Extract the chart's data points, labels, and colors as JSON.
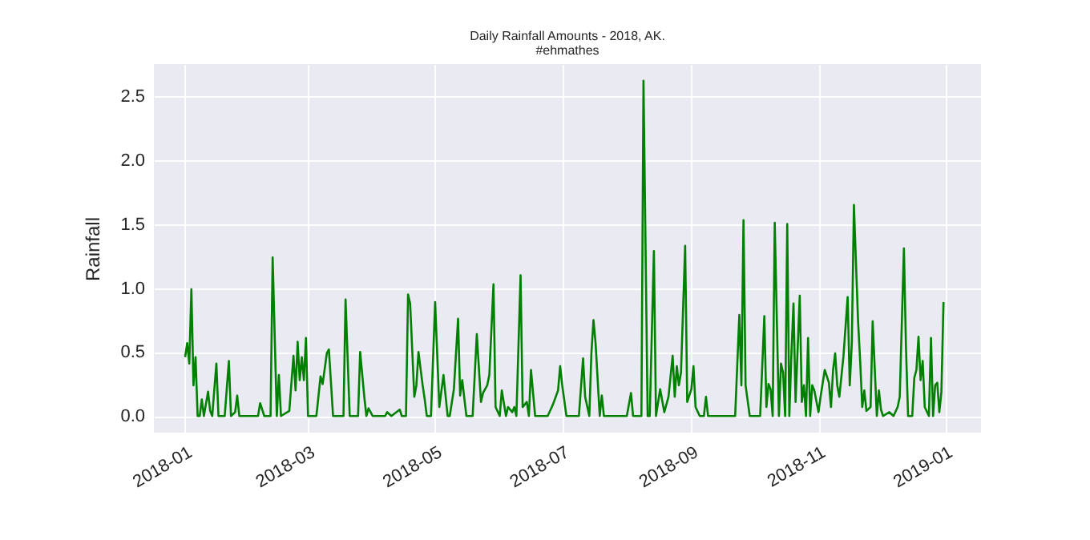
{
  "chart_data": {
    "type": "line",
    "title": "Daily Rainfall Amounts - 2018, AK.",
    "subtitle": "#ehmathes",
    "ylabel": "Rainfall",
    "x": [
      "2018-01-01",
      "2018-01-02",
      "2018-01-03",
      "2018-01-04",
      "2018-01-05",
      "2018-01-06",
      "2018-01-07",
      "2018-01-08",
      "2018-01-09",
      "2018-01-10",
      "2018-01-12",
      "2018-01-13",
      "2018-01-14",
      "2018-01-16",
      "2018-01-17",
      "2018-01-20",
      "2018-01-22",
      "2018-01-23",
      "2018-01-25",
      "2018-01-26",
      "2018-01-27",
      "2018-02-05",
      "2018-02-06",
      "2018-02-08",
      "2018-02-11",
      "2018-02-12",
      "2018-02-14",
      "2018-02-15",
      "2018-02-16",
      "2018-02-20",
      "2018-02-22",
      "2018-02-23",
      "2018-02-24",
      "2018-02-25",
      "2018-02-26",
      "2018-02-27",
      "2018-02-28",
      "2018-03-01",
      "2018-03-05",
      "2018-03-07",
      "2018-03-08",
      "2018-03-10",
      "2018-03-11",
      "2018-03-13",
      "2018-03-18",
      "2018-03-19",
      "2018-03-21",
      "2018-03-25",
      "2018-03-26",
      "2018-03-28",
      "2018-03-29",
      "2018-03-30",
      "2018-04-01",
      "2018-04-07",
      "2018-04-08",
      "2018-04-10",
      "2018-04-14",
      "2018-04-15",
      "2018-04-17",
      "2018-04-18",
      "2018-04-19",
      "2018-04-21",
      "2018-04-22",
      "2018-04-23",
      "2018-04-25",
      "2018-04-26",
      "2018-04-27",
      "2018-04-29",
      "2018-05-01",
      "2018-05-03",
      "2018-05-05",
      "2018-05-07",
      "2018-05-08",
      "2018-05-10",
      "2018-05-12",
      "2018-05-13",
      "2018-05-14",
      "2018-05-16",
      "2018-05-19",
      "2018-05-21",
      "2018-05-23",
      "2018-05-24",
      "2018-05-26",
      "2018-05-27",
      "2018-05-29",
      "2018-05-30",
      "2018-06-01",
      "2018-06-02",
      "2018-06-04",
      "2018-06-05",
      "2018-06-07",
      "2018-06-08",
      "2018-06-09",
      "2018-06-11",
      "2018-06-12",
      "2018-06-14",
      "2018-06-15",
      "2018-06-16",
      "2018-06-18",
      "2018-06-24",
      "2018-06-26",
      "2018-06-27",
      "2018-06-29",
      "2018-06-30",
      "2018-07-01",
      "2018-07-03",
      "2018-07-09",
      "2018-07-11",
      "2018-07-12",
      "2018-07-14",
      "2018-07-15",
      "2018-07-16",
      "2018-07-17",
      "2018-07-19",
      "2018-07-20",
      "2018-07-21",
      "2018-08-01",
      "2018-08-03",
      "2018-08-04",
      "2018-08-08",
      "2018-08-09",
      "2018-08-11",
      "2018-08-12",
      "2018-08-14",
      "2018-08-15",
      "2018-08-17",
      "2018-08-19",
      "2018-08-21",
      "2018-08-23",
      "2018-08-24",
      "2018-08-25",
      "2018-08-26",
      "2018-08-27",
      "2018-08-29",
      "2018-08-30",
      "2018-09-01",
      "2018-09-02",
      "2018-09-03",
      "2018-09-05",
      "2018-09-07",
      "2018-09-08",
      "2018-09-09",
      "2018-09-22",
      "2018-09-24",
      "2018-09-25",
      "2018-09-26",
      "2018-09-27",
      "2018-09-29",
      "2018-10-04",
      "2018-10-06",
      "2018-10-07",
      "2018-10-08",
      "2018-10-09",
      "2018-10-10",
      "2018-10-11",
      "2018-10-13",
      "2018-10-14",
      "2018-10-15",
      "2018-10-16",
      "2018-10-17",
      "2018-10-18",
      "2018-10-19",
      "2018-10-20",
      "2018-10-21",
      "2018-10-22",
      "2018-10-23",
      "2018-10-24",
      "2018-10-25",
      "2018-10-26",
      "2018-10-27",
      "2018-10-28",
      "2018-10-29",
      "2018-10-30",
      "2018-11-01",
      "2018-11-02",
      "2018-11-04",
      "2018-11-06",
      "2018-11-07",
      "2018-11-08",
      "2018-11-09",
      "2018-11-10",
      "2018-11-11",
      "2018-11-13",
      "2018-11-15",
      "2018-11-16",
      "2018-11-17",
      "2018-11-18",
      "2018-11-20",
      "2018-11-21",
      "2018-11-22",
      "2018-11-23",
      "2018-11-24",
      "2018-11-26",
      "2018-11-27",
      "2018-11-29",
      "2018-11-30",
      "2018-12-01",
      "2018-12-02",
      "2018-12-05",
      "2018-12-07",
      "2018-12-09",
      "2018-12-10",
      "2018-12-12",
      "2018-12-13",
      "2018-12-14",
      "2018-12-16",
      "2018-12-17",
      "2018-12-18",
      "2018-12-19",
      "2018-12-20",
      "2018-12-21",
      "2018-12-22",
      "2018-12-24",
      "2018-12-25",
      "2018-12-26",
      "2018-12-27",
      "2018-12-28",
      "2018-12-29",
      "2018-12-30",
      "2018-12-31"
    ],
    "series": [
      {
        "color": "#008000",
        "values": [
          0.46,
          0.57,
          0.41,
          0.99,
          0.24,
          0.46,
          0,
          0,
          0.13,
          0,
          0.19,
          0.04,
          0,
          0.41,
          0,
          0,
          0.43,
          0,
          0.03,
          0.16,
          0,
          0,
          0.1,
          0,
          0,
          1.24,
          0,
          0.32,
          0,
          0.04,
          0.47,
          0.2,
          0.58,
          0.28,
          0.46,
          0.28,
          0.61,
          0,
          0,
          0.31,
          0.25,
          0.49,
          0.52,
          0,
          0,
          0.91,
          0,
          0,
          0.5,
          0.15,
          0,
          0.06,
          0,
          0,
          0.03,
          0,
          0.05,
          0,
          0,
          0.95,
          0.88,
          0.15,
          0.24,
          0.5,
          0.24,
          0.13,
          0,
          0,
          0.89,
          0.07,
          0.32,
          0,
          0,
          0.21,
          0.76,
          0.16,
          0.28,
          0,
          0,
          0.64,
          0.11,
          0.18,
          0.24,
          0.32,
          1.03,
          0.07,
          0,
          0.2,
          0,
          0.07,
          0.03,
          0.07,
          0,
          1.1,
          0.07,
          0.11,
          0,
          0.36,
          0,
          0,
          0.07,
          0.11,
          0.2,
          0.39,
          0.24,
          0,
          0,
          0.45,
          0.15,
          0,
          0.49,
          0.75,
          0.57,
          0,
          0.16,
          0,
          0,
          0.18,
          0,
          0,
          2.62,
          0,
          0,
          1.29,
          0,
          0.21,
          0.03,
          0.15,
          0.47,
          0.15,
          0.39,
          0.24,
          0.34,
          1.33,
          0.11,
          0.21,
          0.39,
          0.07,
          0,
          0,
          0.15,
          0,
          0,
          0.79,
          0.24,
          1.53,
          0.24,
          0,
          0,
          0.78,
          0.07,
          0.25,
          0.21,
          0,
          1.51,
          0,
          0.41,
          0.34,
          0,
          1.5,
          0,
          0.48,
          0.88,
          0.11,
          0.53,
          0.94,
          0.11,
          0.24,
          0,
          0.61,
          0,
          0.24,
          0.2,
          0.03,
          0.15,
          0.36,
          0.26,
          0.07,
          0.36,
          0.49,
          0.24,
          0.15,
          0.47,
          0.93,
          0.24,
          0.57,
          1.65,
          0.74,
          0.43,
          0.07,
          0.2,
          0.04,
          0.07,
          0.74,
          0,
          0.2,
          0.05,
          0,
          0.03,
          0,
          0.07,
          0.15,
          1.31,
          0.53,
          0,
          0,
          0.3,
          0.36,
          0.62,
          0.28,
          0.43,
          0.07,
          0,
          0.61,
          0,
          0.24,
          0.26,
          0.03,
          0.19,
          0.89
        ]
      }
    ],
    "xlim": [
      "2017-12-17",
      "2019-01-18"
    ],
    "xticks": [
      "2018-01",
      "2018-03",
      "2018-05",
      "2018-07",
      "2018-09",
      "2018-11",
      "2019-01"
    ],
    "ylim": [
      -0.13,
      2.75
    ],
    "yticks": [
      {
        "value": 0,
        "label": "0.0"
      },
      {
        "value": 0.5,
        "label": "0.5"
      },
      {
        "value": 1,
        "label": "1.0"
      },
      {
        "value": 1.5,
        "label": "1.5"
      },
      {
        "value": 2,
        "label": "2.0"
      },
      {
        "value": 2.5,
        "label": "2.5"
      }
    ],
    "grid": true
  }
}
